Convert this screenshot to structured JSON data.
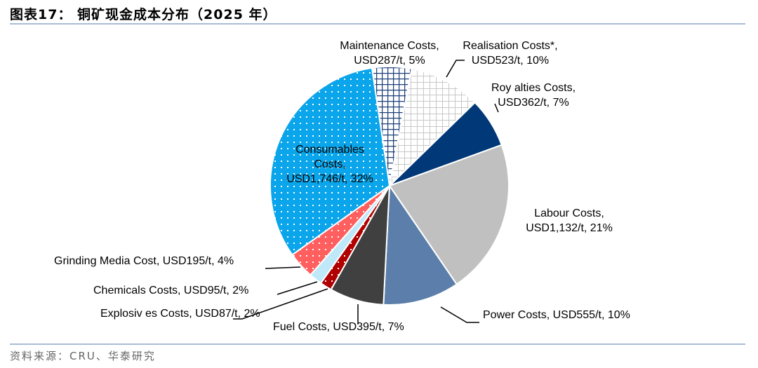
{
  "header": {
    "title": "图表17：  铜矿现金成本分布（2025 年）"
  },
  "footer": {
    "source": "资料来源：CRU、华泰研究"
  },
  "chart_data": {
    "type": "pie",
    "title": "图表17：  铜矿现金成本分布（2025 年）",
    "unit": "USD/t",
    "slices": [
      {
        "name": "Maintenance Costs",
        "value": 287,
        "percent": 5,
        "label1": "Maintenance Costs,",
        "label2": "USD287/t, 5%",
        "color": "#1f3f7a",
        "pattern": "grid-navy"
      },
      {
        "name": "Realisation Costs*",
        "value": 523,
        "percent": 10,
        "label1": "Realisation Costs*,",
        "label2": "USD523/t, 10%",
        "color": "#c8c8c8",
        "pattern": "grid-gray"
      },
      {
        "name": "Roy alties Costs",
        "value": 362,
        "percent": 7,
        "label1": "Roy alties Costs,",
        "label2": "USD362/t, 7%",
        "color": "#003878",
        "pattern": "solid"
      },
      {
        "name": "Labour Costs",
        "value": 1132,
        "percent": 21,
        "label1": "Labour Costs,",
        "label2": "USD1,132/t, 21%",
        "color": "#c0c0c0",
        "pattern": "solid"
      },
      {
        "name": "Power Costs",
        "value": 555,
        "percent": 10,
        "label1": "Power Costs, USD555/t, 10%",
        "color": "#5b7faa",
        "pattern": "solid"
      },
      {
        "name": "Fuel Costs",
        "value": 395,
        "percent": 7,
        "label1": "Fuel Costs, USD395/t, 7%",
        "color": "#404040",
        "pattern": "solid"
      },
      {
        "name": "Explosiv es Costs",
        "value": 87,
        "percent": 2,
        "label1": "Explosiv es Costs, USD87/t, 2%",
        "color": "#b00000",
        "pattern": "dots"
      },
      {
        "name": "Chemicals Costs",
        "value": 95,
        "percent": 2,
        "label1": "Chemicals Costs, USD95/t, 2%",
        "color": "#bfe8f8",
        "pattern": "solid"
      },
      {
        "name": "Grinding Media Cost",
        "value": 195,
        "percent": 4,
        "label1": "Grinding Media Cost, USD195/t, 4%",
        "color": "#ff5f5f",
        "pattern": "dots"
      },
      {
        "name": "Consumables Costs",
        "value": 1746,
        "percent": 32,
        "label1": "Consumables",
        "label2": "Costs,",
        "label3": "USD1,746/t, 32%",
        "color": "#0aa5ea",
        "pattern": "dots"
      }
    ]
  }
}
